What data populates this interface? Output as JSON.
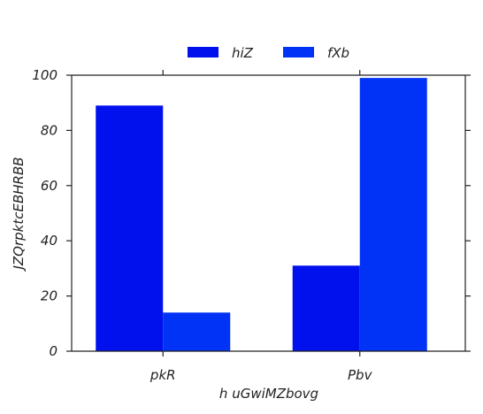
{
  "chart_data": {
    "type": "bar",
    "categories": [
      "pkR",
      "Pbv"
    ],
    "series": [
      {
        "name": "hiZ",
        "values": [
          89,
          31
        ],
        "color": "#0011ee"
      },
      {
        "name": "fXb",
        "values": [
          14,
          99
        ],
        "color": "#0033f5"
      }
    ],
    "xlabel": "h uGwiMZbovg",
    "ylabel": "JZQrpktcEBHRBB",
    "ylim": [
      0,
      100
    ],
    "yticks": [
      0,
      20,
      40,
      60,
      80,
      100
    ],
    "grid": false,
    "legend": "top-center"
  }
}
